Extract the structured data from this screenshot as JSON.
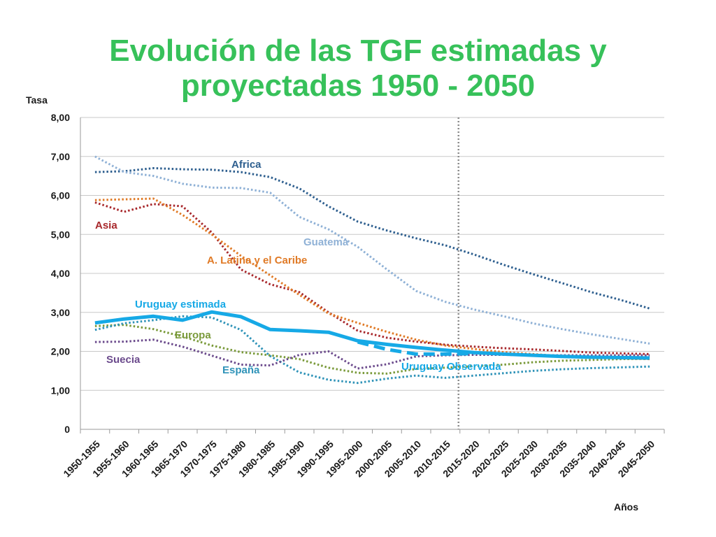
{
  "title_lines": [
    "Evolución de las TGF estimadas y",
    "proyectadas 1950 - 2050"
  ],
  "chart_data": {
    "type": "line",
    "title": "Evolución de las TGF estimadas y proyectadas 1950 - 2050",
    "ylabel": "Tasa",
    "xlabel": "Años",
    "ylim": [
      0,
      8
    ],
    "yticks": [
      "0",
      "1,00",
      "2,00",
      "3,00",
      "4,00",
      "5,00",
      "6,00",
      "7,00",
      "8,00"
    ],
    "categories": [
      "1950-1955",
      "1955-1960",
      "1960-1965",
      "1965-1970",
      "1970-1975",
      "1975-1980",
      "1980-1985",
      "1985-1990",
      "1990-1995",
      "1995-2000",
      "2000-2005",
      "2005-2010",
      "2010-2015",
      "2015-2020",
      "2020-2025",
      "2025-2030",
      "2030-2035",
      "2035-2040",
      "2040-2045",
      "2045-2050"
    ],
    "grid": "horizontal",
    "reference_line_between": [
      "2010-2015",
      "2015-2020"
    ],
    "series": [
      {
        "name": "Africa",
        "color": "#2e5f8f",
        "style": "dotted",
        "width": 3,
        "values": [
          6.6,
          6.62,
          6.7,
          6.67,
          6.66,
          6.6,
          6.47,
          6.18,
          5.72,
          5.33,
          5.1,
          4.9,
          4.72,
          4.48,
          4.22,
          3.98,
          3.75,
          3.52,
          3.32,
          3.1
        ]
      },
      {
        "name": "Guatema",
        "color": "#8fb1d6",
        "style": "dotted",
        "width": 3,
        "values": [
          7.0,
          6.6,
          6.5,
          6.3,
          6.2,
          6.19,
          6.07,
          5.45,
          5.13,
          4.68,
          4.1,
          3.55,
          3.27,
          3.07,
          2.9,
          2.72,
          2.57,
          2.44,
          2.32,
          2.2
        ]
      },
      {
        "name": "Asia",
        "color": "#a8282c",
        "style": "dotted",
        "width": 3,
        "values": [
          5.82,
          5.58,
          5.78,
          5.72,
          5.05,
          4.1,
          3.72,
          3.52,
          3.0,
          2.53,
          2.35,
          2.25,
          2.17,
          2.12,
          2.08,
          2.05,
          2.01,
          1.97,
          1.95,
          1.93
        ]
      },
      {
        "name": "A. Latina y el Caribe",
        "color": "#e07a26",
        "style": "dotted",
        "width": 3,
        "values": [
          5.88,
          5.9,
          5.92,
          5.5,
          5.0,
          4.45,
          3.95,
          3.45,
          2.97,
          2.73,
          2.5,
          2.3,
          2.15,
          2.06,
          1.98,
          1.93,
          1.88,
          1.85,
          1.82,
          1.8
        ]
      },
      {
        "name": "Europa",
        "color": "#7a9a3a",
        "style": "dotted",
        "width": 3,
        "values": [
          2.65,
          2.68,
          2.57,
          2.38,
          2.15,
          1.98,
          1.9,
          1.8,
          1.58,
          1.45,
          1.43,
          1.55,
          1.58,
          1.62,
          1.66,
          1.72,
          1.76,
          1.78,
          1.8,
          1.81
        ]
      },
      {
        "name": "España",
        "color": "#2f93b8",
        "style": "dotted",
        "width": 3,
        "values": [
          2.55,
          2.72,
          2.8,
          2.9,
          2.87,
          2.55,
          1.88,
          1.46,
          1.27,
          1.19,
          1.3,
          1.38,
          1.32,
          1.38,
          1.44,
          1.5,
          1.54,
          1.57,
          1.59,
          1.61
        ]
      },
      {
        "name": "Suecia",
        "color": "#6b4a8c",
        "style": "dotted",
        "width": 3,
        "values": [
          2.24,
          2.25,
          2.3,
          2.12,
          1.89,
          1.66,
          1.64,
          1.91,
          2.0,
          1.56,
          1.67,
          1.87,
          1.9,
          1.91,
          1.91,
          1.9,
          1.9,
          1.9,
          1.9,
          1.9
        ]
      },
      {
        "name": "Uruguay estimada",
        "color": "#16a9e6",
        "style": "solid",
        "width": 5,
        "values": [
          2.73,
          2.83,
          2.9,
          2.8,
          3.01,
          2.89,
          2.56,
          2.53,
          2.49,
          2.27,
          2.18,
          2.1,
          2.03,
          1.97,
          1.93,
          1.9,
          1.87,
          1.85,
          1.84,
          1.83
        ]
      },
      {
        "name": "Uruguay Observada",
        "color": "#16a9e6",
        "style": "dashed",
        "width": 5,
        "values": [
          null,
          null,
          null,
          null,
          null,
          null,
          null,
          null,
          null,
          2.24,
          2.05,
          1.93,
          1.93,
          1.94,
          null,
          null,
          null,
          null,
          null,
          null
        ]
      }
    ]
  }
}
